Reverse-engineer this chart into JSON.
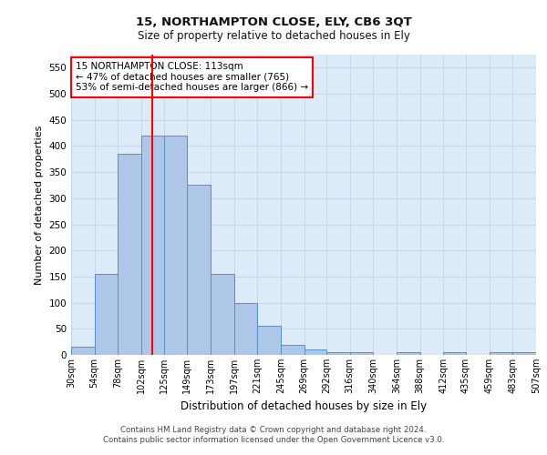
{
  "title1": "15, NORTHAMPTON CLOSE, ELY, CB6 3QT",
  "title2": "Size of property relative to detached houses in Ely",
  "xlabel": "Distribution of detached houses by size in Ely",
  "ylabel": "Number of detached properties",
  "bar_color": "#aec6e8",
  "bar_edge_color": "#5590c8",
  "grid_color": "#c8d8ec",
  "background_color": "#ddeaf8",
  "property_line_x": 113,
  "property_line_color": "red",
  "bin_edges": [
    30,
    54,
    78,
    102,
    125,
    149,
    173,
    197,
    221,
    245,
    269,
    292,
    316,
    340,
    364,
    388,
    412,
    435,
    459,
    483,
    507
  ],
  "bar_heights": [
    15,
    155,
    385,
    420,
    420,
    325,
    155,
    100,
    55,
    20,
    10,
    5,
    5,
    0,
    5,
    0,
    5,
    0,
    5,
    5
  ],
  "ylim": [
    0,
    575
  ],
  "yticks": [
    0,
    50,
    100,
    150,
    200,
    250,
    300,
    350,
    400,
    450,
    500,
    550
  ],
  "annotation_text_line1": "15 NORTHAMPTON CLOSE: 113sqm",
  "annotation_text_line2": "← 47% of detached houses are smaller (765)",
  "annotation_text_line3": "53% of semi-detached houses are larger (866) →",
  "footnote1": "Contains HM Land Registry data © Crown copyright and database right 2024.",
  "footnote2": "Contains public sector information licensed under the Open Government Licence v3.0."
}
